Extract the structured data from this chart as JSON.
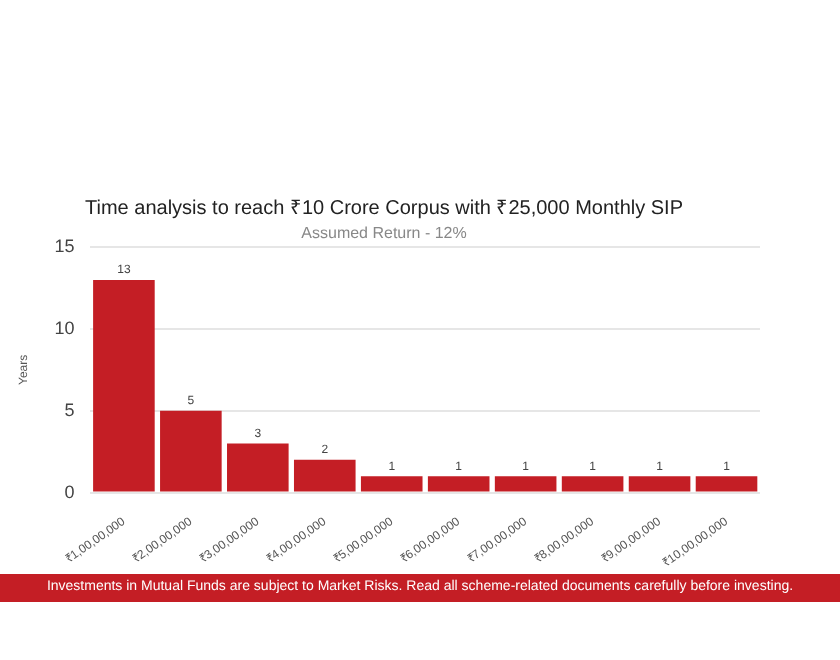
{
  "chart_data": {
    "type": "bar",
    "title": "Time analysis to reach ₹10 Crore Corpus with ₹25,000 Monthly SIP",
    "subtitle": "Assumed Return - 12%",
    "ylabel": "Years",
    "categories": [
      "₹1,00,00,000",
      "₹2,00,00,000",
      "₹3,00,00,000",
      "₹4,00,00,000",
      "₹5,00,00,000",
      "₹6,00,00,000",
      "₹7,00,00,000",
      "₹8,00,00,000",
      "₹9,00,00,000",
      "₹10,00,00,000"
    ],
    "values": [
      13,
      5,
      3,
      2,
      1,
      1,
      1,
      1,
      1,
      1
    ],
    "data_labels": true,
    "color": "#c41e25",
    "ylim": [
      0,
      15
    ],
    "yticks": [
      0,
      5,
      10,
      15
    ],
    "grid": "y",
    "legend": false,
    "annotations": [
      "Investments in Mutual Funds are subject to Market Risks. Read all scheme-related documents carefully before investing."
    ]
  }
}
